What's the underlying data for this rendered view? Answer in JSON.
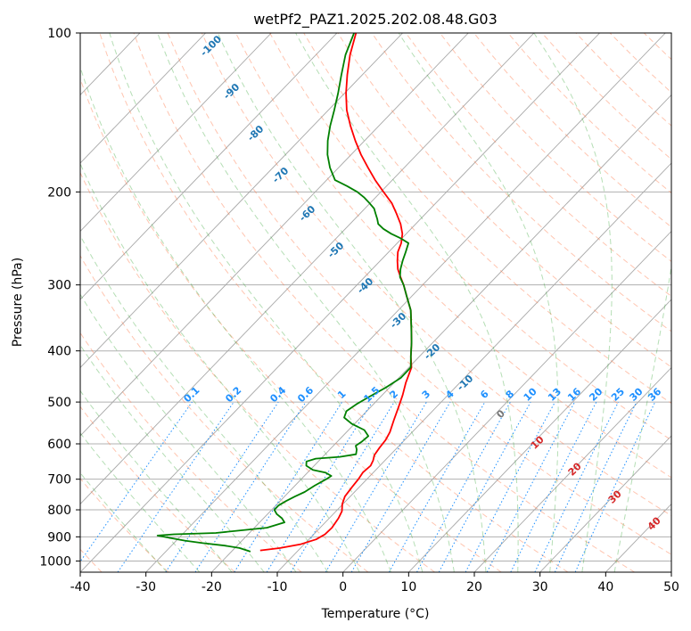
{
  "chart_data": {
    "type": "line",
    "title": "wetPf2_PAZ1.2025.202.08.48.G03",
    "xlabel": "Temperature (°C)",
    "ylabel": "Pressure (hPa)",
    "xlim": [
      -40,
      50
    ],
    "ylim": [
      1050,
      100
    ],
    "y_scale": "log",
    "skew": "skew-T",
    "grid": true,
    "x_ticks": [
      -40,
      -30,
      -20,
      -10,
      0,
      10,
      20,
      30,
      40,
      50
    ],
    "y_ticks": [
      100,
      200,
      300,
      400,
      500,
      600,
      700,
      800,
      900,
      1000
    ],
    "colors": {
      "temperature": "#ff0000",
      "dewpoint": "#008000",
      "isotherm_label": "#1f77b4",
      "mixing_ratio": "#1e90ff",
      "moist_adiabat": "#2ca02c",
      "dry_adiabat": "#ff7f50",
      "moist_adiabat_label": "#d62728",
      "grid": "#b0b0b0"
    },
    "isotherm_labels": [
      -100,
      -90,
      -80,
      -70,
      -60,
      -50,
      -40,
      -30,
      -20,
      -10,
      0
    ],
    "mixing_ratio_labels": [
      "0.1",
      "0.2",
      "0.4",
      "0.6",
      "1",
      "1.5",
      "2",
      "3",
      "4",
      "6",
      "8",
      "10",
      "13",
      "16",
      "20",
      "25",
      "30",
      "36"
    ],
    "mixing_ratio_values": [
      0.1,
      0.2,
      0.4,
      0.6,
      1,
      1.5,
      2,
      3,
      4,
      6,
      8,
      10,
      13,
      16,
      20,
      25,
      30,
      36
    ],
    "moist_adiabat_labels": [
      "10",
      "20",
      "30",
      "40"
    ],
    "series": [
      {
        "key": "temperature",
        "points": [
          [
            -15.8,
            955
          ],
          [
            -13.1,
            945
          ],
          [
            -10.6,
            930
          ],
          [
            -8.9,
            910
          ],
          [
            -8.3,
            890
          ],
          [
            -8.2,
            865
          ],
          [
            -8.6,
            830
          ],
          [
            -9.1,
            805
          ],
          [
            -10.1,
            780
          ],
          [
            -10.8,
            755
          ],
          [
            -11.1,
            725
          ],
          [
            -11.3,
            700
          ],
          [
            -11.6,
            680
          ],
          [
            -11.4,
            660
          ],
          [
            -11.8,
            645
          ],
          [
            -12.4,
            630
          ],
          [
            -12.7,
            610
          ],
          [
            -12.9,
            590
          ],
          [
            -13.4,
            570
          ],
          [
            -14.6,
            540
          ],
          [
            -15.8,
            510
          ],
          [
            -16.9,
            485
          ],
          [
            -18.2,
            460
          ],
          [
            -19.6,
            430
          ],
          [
            -21.3,
            410
          ],
          [
            -23.3,
            385
          ],
          [
            -25.6,
            360
          ],
          [
            -28.1,
            335
          ],
          [
            -30.8,
            315
          ],
          [
            -32.9,
            300
          ],
          [
            -34.5,
            290
          ],
          [
            -36.1,
            280
          ],
          [
            -37.4,
            270
          ],
          [
            -38.6,
            260
          ],
          [
            -39.4,
            250
          ],
          [
            -40.6,
            240
          ],
          [
            -42.3,
            230
          ],
          [
            -44.4,
            220
          ],
          [
            -46.7,
            210
          ],
          [
            -49.6,
            200
          ],
          [
            -52.6,
            190
          ],
          [
            -55.5,
            180
          ],
          [
            -58.5,
            170
          ],
          [
            -61.4,
            160
          ],
          [
            -64.3,
            150
          ],
          [
            -67.2,
            140
          ],
          [
            -69.8,
            130
          ],
          [
            -72.3,
            120
          ],
          [
            -74.8,
            110
          ],
          [
            -77.1,
            100
          ]
        ]
      },
      {
        "key": "dewpoint",
        "points": [
          [
            -17.1,
            960
          ],
          [
            -19.3,
            945
          ],
          [
            -21.9,
            935
          ],
          [
            -25.6,
            925
          ],
          [
            -28.7,
            915
          ],
          [
            -31.2,
            905
          ],
          [
            -33.6,
            895
          ],
          [
            -31.3,
            890
          ],
          [
            -25.1,
            885
          ],
          [
            -18.1,
            865
          ],
          [
            -16.2,
            845
          ],
          [
            -17.2,
            830
          ],
          [
            -18.6,
            815
          ],
          [
            -19.6,
            800
          ],
          [
            -19.6,
            785
          ],
          [
            -19.1,
            770
          ],
          [
            -18.4,
            755
          ],
          [
            -17.6,
            740
          ],
          [
            -17.0,
            720
          ],
          [
            -16.2,
            700
          ],
          [
            -15.9,
            690
          ],
          [
            -17.3,
            680
          ],
          [
            -19.6,
            672
          ],
          [
            -21.2,
            660
          ],
          [
            -21.8,
            648
          ],
          [
            -20.8,
            640
          ],
          [
            -17.4,
            635
          ],
          [
            -15.3,
            628
          ],
          [
            -15.9,
            615
          ],
          [
            -16.6,
            605
          ],
          [
            -16.3,
            595
          ],
          [
            -16.1,
            580
          ],
          [
            -17.6,
            565
          ],
          [
            -20.4,
            550
          ],
          [
            -22.5,
            535
          ],
          [
            -23.1,
            520
          ],
          [
            -22.6,
            505
          ],
          [
            -21.8,
            490
          ],
          [
            -20.6,
            470
          ],
          [
            -19.7,
            450
          ],
          [
            -19.7,
            430
          ],
          [
            -21.3,
            410
          ],
          [
            -23.3,
            385
          ],
          [
            -25.6,
            360
          ],
          [
            -28.1,
            335
          ],
          [
            -30.8,
            315
          ],
          [
            -32.9,
            300
          ],
          [
            -34.6,
            290
          ],
          [
            -35.7,
            280
          ],
          [
            -36.6,
            270
          ],
          [
            -37.4,
            260
          ],
          [
            -38.3,
            250
          ],
          [
            -40.1,
            245
          ],
          [
            -42.3,
            240
          ],
          [
            -44.2,
            235
          ],
          [
            -45.7,
            230
          ],
          [
            -46.6,
            225
          ],
          [
            -47.6,
            220
          ],
          [
            -48.6,
            215
          ],
          [
            -50.1,
            210
          ],
          [
            -51.7,
            205
          ],
          [
            -53.6,
            200
          ],
          [
            -56.0,
            195
          ],
          [
            -58.7,
            190
          ],
          [
            -61.3,
            180
          ],
          [
            -63.6,
            170
          ],
          [
            -65.6,
            160
          ],
          [
            -67.4,
            150
          ],
          [
            -69.1,
            140
          ],
          [
            -71.0,
            130
          ],
          [
            -73.2,
            120
          ],
          [
            -75.5,
            110
          ],
          [
            -77.4,
            100
          ]
        ]
      }
    ]
  }
}
